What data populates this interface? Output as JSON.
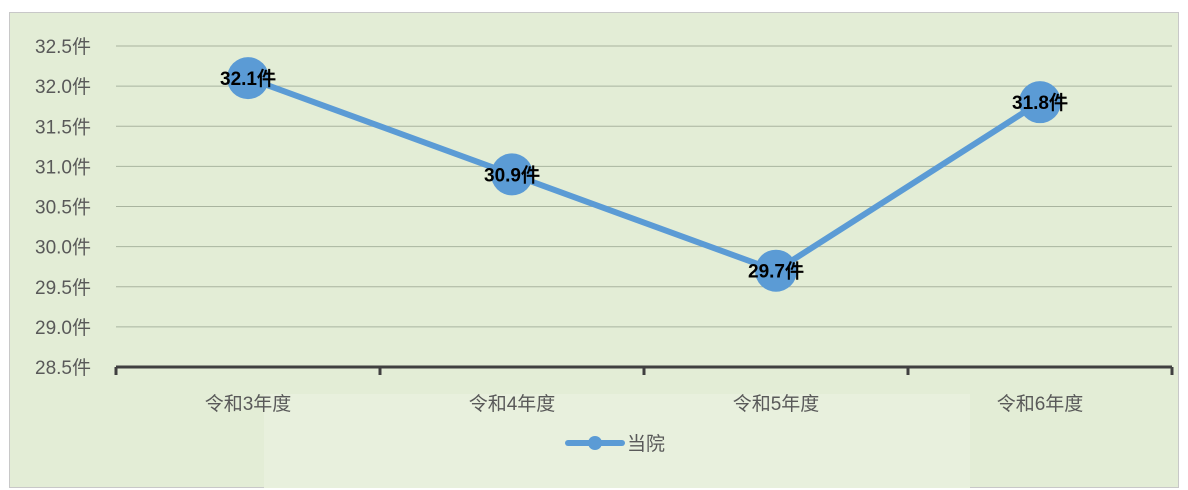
{
  "chart_data": {
    "type": "line",
    "categories": [
      "令和3年度",
      "令和4年度",
      "令和5年度",
      "令和6年度"
    ],
    "series": [
      {
        "name": "当院",
        "values": [
          32.1,
          30.9,
          29.7,
          31.8
        ],
        "color": "#5b9bd5"
      }
    ],
    "data_labels": [
      "32.1件",
      "30.9件",
      "29.7件",
      "31.8件"
    ],
    "y_ticks": [
      "28.5件",
      "29.0件",
      "29.5件",
      "30.0件",
      "30.5件",
      "31.0件",
      "31.5件",
      "32.0件",
      "32.5件"
    ],
    "ylim": [
      28.5,
      32.5
    ],
    "grid": true,
    "legend_position": "bottom",
    "colors": {
      "plot_background": "#e3edd6",
      "gridline": "#a9b49f",
      "axis": "#404040"
    }
  }
}
